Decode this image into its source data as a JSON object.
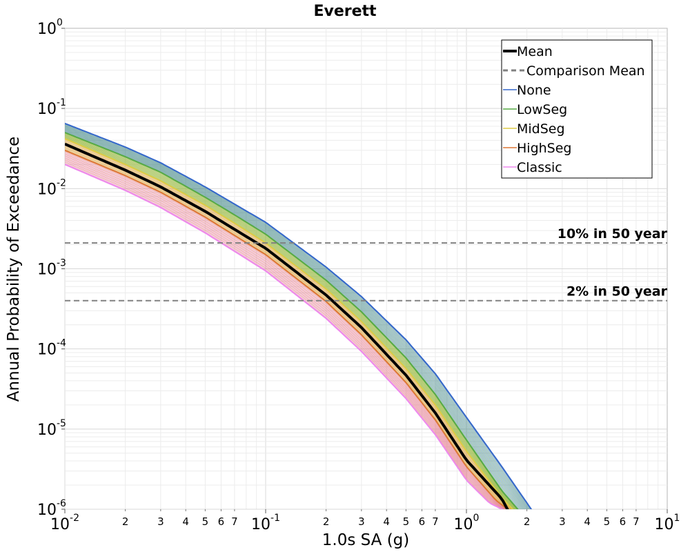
{
  "chart_data": {
    "type": "line",
    "title": "Everett",
    "xlabel": "1.0s SA (g)",
    "ylabel": "Annual Probability of Exceedance",
    "xscale": "log",
    "yscale": "log",
    "xlim": [
      0.01,
      10
    ],
    "ylim": [
      1e-06,
      1
    ],
    "grid": true,
    "legend_position": "top-right",
    "x_major_ticks": [
      {
        "value": 0.01,
        "base": "10",
        "exp": "-2"
      },
      {
        "value": 0.1,
        "base": "10",
        "exp": "-1"
      },
      {
        "value": 1,
        "base": "10",
        "exp": "0"
      },
      {
        "value": 10,
        "base": "10",
        "exp": "1"
      }
    ],
    "x_minor_ticks": [
      {
        "value": 0.02,
        "label": "2"
      },
      {
        "value": 0.03,
        "label": "3"
      },
      {
        "value": 0.04,
        "label": "4"
      },
      {
        "value": 0.05,
        "label": "5"
      },
      {
        "value": 0.06,
        "label": "6"
      },
      {
        "value": 0.07,
        "label": "7"
      },
      {
        "value": 0.2,
        "label": "2"
      },
      {
        "value": 0.3,
        "label": "3"
      },
      {
        "value": 0.4,
        "label": "4"
      },
      {
        "value": 0.5,
        "label": "5"
      },
      {
        "value": 0.6,
        "label": "6"
      },
      {
        "value": 0.7,
        "label": "7"
      },
      {
        "value": 2,
        "label": "2"
      },
      {
        "value": 3,
        "label": "3"
      },
      {
        "value": 4,
        "label": "4"
      },
      {
        "value": 5,
        "label": "5"
      },
      {
        "value": 6,
        "label": "6"
      },
      {
        "value": 7,
        "label": "7"
      }
    ],
    "y_major_ticks": [
      {
        "value": 1,
        "base": "10",
        "exp": "0"
      },
      {
        "value": 0.1,
        "base": "10",
        "exp": "-1"
      },
      {
        "value": 0.01,
        "base": "10",
        "exp": "-2"
      },
      {
        "value": 0.001,
        "base": "10",
        "exp": "-3"
      },
      {
        "value": 0.0001,
        "base": "10",
        "exp": "-4"
      },
      {
        "value": 1e-05,
        "base": "10",
        "exp": "-5"
      },
      {
        "value": 1e-06,
        "base": "10",
        "exp": "-6"
      }
    ],
    "reference_lines": [
      {
        "label": "10% in 50 year",
        "y": 0.0021
      },
      {
        "label": "2% in 50 year",
        "y": 0.0004
      }
    ],
    "series": [
      {
        "name": "Mean",
        "color": "#000000",
        "style": "solid",
        "x": [
          0.01,
          0.02,
          0.03,
          0.05,
          0.07,
          0.1,
          0.2,
          0.3,
          0.5,
          0.7,
          1.0,
          1.5,
          1.6
        ],
        "y": [
          0.036,
          0.017,
          0.0105,
          0.0052,
          0.0031,
          0.0018,
          0.00047,
          0.000185,
          4.7e-05,
          1.59e-05,
          4.1e-06,
          1.35e-06,
          1e-06
        ]
      },
      {
        "name": "None",
        "color": "#3366cc",
        "style": "solid",
        "x": [
          0.01,
          0.02,
          0.03,
          0.05,
          0.07,
          0.1,
          0.2,
          0.3,
          0.5,
          0.7,
          1.0,
          1.5,
          2.0
        ],
        "y": [
          0.065,
          0.033,
          0.021,
          0.0105,
          0.0064,
          0.0038,
          0.00105,
          0.00045,
          0.00013,
          4.9e-05,
          1.4e-05,
          3.4e-06,
          1.2e-06
        ]
      },
      {
        "name": "LowSeg",
        "color": "#55aa44",
        "style": "solid",
        "x": [
          0.01,
          0.02,
          0.03,
          0.05,
          0.07,
          0.1,
          0.2,
          0.3,
          0.5,
          0.7,
          1.0,
          1.5,
          1.8
        ],
        "y": [
          0.05,
          0.025,
          0.016,
          0.0078,
          0.0047,
          0.0027,
          0.00072,
          0.00029,
          7.7e-05,
          2.7e-05,
          7.3e-06,
          1.7e-06,
          1e-06
        ]
      },
      {
        "name": "MidSeg",
        "color": "#ddcc44",
        "style": "solid",
        "x": [
          0.01,
          0.02,
          0.03,
          0.05,
          0.07,
          0.1,
          0.2,
          0.3,
          0.5,
          0.7,
          1.0,
          1.5,
          1.7
        ],
        "y": [
          0.042,
          0.02,
          0.0125,
          0.0062,
          0.0037,
          0.0021,
          0.00056,
          0.00022,
          5.7e-05,
          2e-05,
          5.3e-06,
          1.4e-06,
          1e-06
        ]
      },
      {
        "name": "HighSeg",
        "color": "#dd7733",
        "style": "solid",
        "x": [
          0.01,
          0.02,
          0.03,
          0.05,
          0.07,
          0.1,
          0.2,
          0.3,
          0.5,
          0.7,
          1.0,
          1.4,
          1.6
        ],
        "y": [
          0.03,
          0.0145,
          0.009,
          0.0044,
          0.0026,
          0.0015,
          0.00039,
          0.00015,
          3.8e-05,
          1.3e-05,
          3.4e-06,
          1.3e-06,
          1e-06
        ]
      },
      {
        "name": "Classic",
        "color": "#ee88ee",
        "style": "solid",
        "x": [
          0.01,
          0.02,
          0.03,
          0.05,
          0.07,
          0.1,
          0.2,
          0.3,
          0.5,
          0.7,
          1.0,
          1.3,
          1.5
        ],
        "y": [
          0.02,
          0.0095,
          0.0058,
          0.0028,
          0.00165,
          0.00094,
          0.00024,
          9.3e-05,
          2.4e-05,
          8.5e-06,
          2.3e-06,
          1.2e-06,
          1e-06
        ]
      }
    ],
    "legend": [
      {
        "label": "Mean",
        "color": "#000000",
        "style": "solid"
      },
      {
        "label": "Comparison Mean",
        "color": "#808080",
        "style": "dashed"
      },
      {
        "label": "None",
        "color": "#3366cc",
        "style": "solid"
      },
      {
        "label": "LowSeg",
        "color": "#55aa44",
        "style": "solid"
      },
      {
        "label": "MidSeg",
        "color": "#ddcc44",
        "style": "solid"
      },
      {
        "label": "HighSeg",
        "color": "#dd7733",
        "style": "solid"
      },
      {
        "label": "Classic",
        "color": "#ee88ee",
        "style": "solid"
      }
    ]
  }
}
